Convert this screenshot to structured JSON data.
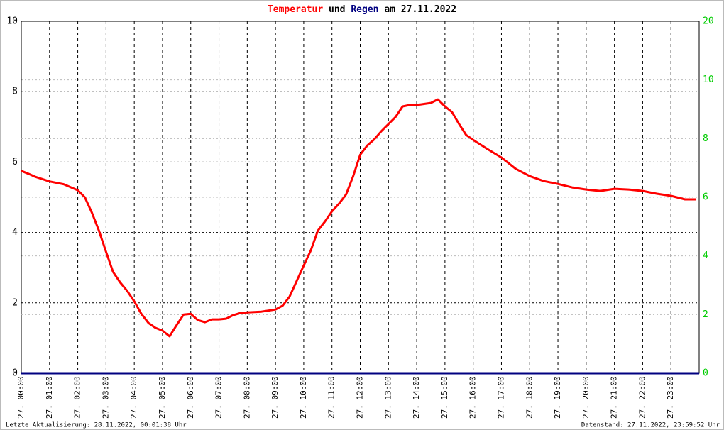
{
  "chart_data": {
    "type": "line",
    "title_parts": [
      {
        "text": "Temperatur",
        "color": "#ff0000"
      },
      {
        "text": "und",
        "color": "#000000"
      },
      {
        "text": "Regen",
        "color": "#000080"
      },
      {
        "text": "am 27.11.2022",
        "color": "#000000"
      }
    ],
    "footer_left": "Letzte Aktualisierung: 28.11.2022, 00:01:38 Uhr",
    "footer_right": "Datenstand: 27.11.2022, 23:59:52 Uhr",
    "xlim": [
      0,
      24
    ],
    "xticks": [
      {
        "value": 0,
        "label": "27. 00:00"
      },
      {
        "value": 1,
        "label": "27. 01:00"
      },
      {
        "value": 2,
        "label": "27. 02:00"
      },
      {
        "value": 3,
        "label": "27. 03:00"
      },
      {
        "value": 4,
        "label": "27. 04:00"
      },
      {
        "value": 5,
        "label": "27. 05:00"
      },
      {
        "value": 6,
        "label": "27. 06:00"
      },
      {
        "value": 7,
        "label": "27. 07:00"
      },
      {
        "value": 8,
        "label": "27. 08:00"
      },
      {
        "value": 9,
        "label": "27. 09:00"
      },
      {
        "value": 10,
        "label": "27. 10:00"
      },
      {
        "value": 11,
        "label": "27. 11:00"
      },
      {
        "value": 12,
        "label": "27. 12:00"
      },
      {
        "value": 13,
        "label": "27. 13:00"
      },
      {
        "value": 14,
        "label": "27. 14:00"
      },
      {
        "value": 15,
        "label": "27. 15:00"
      },
      {
        "value": 16,
        "label": "27. 16:00"
      },
      {
        "value": 17,
        "label": "27. 17:00"
      },
      {
        "value": 18,
        "label": "27. 18:00"
      },
      {
        "value": 19,
        "label": "27. 19:00"
      },
      {
        "value": 20,
        "label": "27. 20:00"
      },
      {
        "value": 21,
        "label": "27. 21:00"
      },
      {
        "value": 22,
        "label": "27. 22:00"
      },
      {
        "value": 23,
        "label": "27. 23:00"
      }
    ],
    "ylim": [
      0,
      10
    ],
    "yticks": [
      0,
      2,
      4,
      6,
      8,
      10
    ],
    "ytick_color": "#000000",
    "y2lim": [
      0,
      12
    ],
    "y2ticks": [
      0,
      2,
      4,
      6,
      8,
      10
    ],
    "y2_top_label": "20",
    "y2tick_color": "#00cc00",
    "grid": true,
    "series": [
      {
        "name": "Temperatur",
        "color": "#ff0000",
        "x": [
          0,
          0.25,
          0.5,
          1,
          1.5,
          2,
          2.25,
          2.5,
          2.75,
          3,
          3.25,
          3.5,
          3.75,
          4,
          4.25,
          4.5,
          4.75,
          5,
          5.25,
          5.5,
          5.75,
          6,
          6.25,
          6.5,
          6.75,
          7,
          7.25,
          7.5,
          7.75,
          8,
          8.5,
          9,
          9.25,
          9.5,
          9.75,
          10,
          10.25,
          10.5,
          10.75,
          11,
          11.25,
          11.5,
          11.75,
          12,
          12.25,
          12.5,
          12.75,
          13,
          13.25,
          13.5,
          13.75,
          14,
          14.5,
          14.75,
          15,
          15.25,
          15.5,
          15.75,
          16,
          16.5,
          17,
          17.5,
          18,
          18.5,
          19,
          19.5,
          20,
          20.5,
          21,
          21.5,
          22,
          22.5,
          23,
          23.5,
          23.9
        ],
        "values": [
          5.75,
          5.67,
          5.58,
          5.45,
          5.37,
          5.2,
          5.0,
          4.56,
          4.05,
          3.45,
          2.88,
          2.58,
          2.34,
          2.04,
          1.69,
          1.43,
          1.29,
          1.21,
          1.05,
          1.37,
          1.67,
          1.69,
          1.51,
          1.45,
          1.53,
          1.53,
          1.55,
          1.65,
          1.71,
          1.73,
          1.75,
          1.81,
          1.92,
          2.18,
          2.62,
          3.06,
          3.49,
          4.05,
          4.31,
          4.6,
          4.82,
          5.08,
          5.6,
          6.21,
          6.47,
          6.65,
          6.88,
          7.08,
          7.28,
          7.58,
          7.62,
          7.62,
          7.68,
          7.78,
          7.58,
          7.42,
          7.08,
          6.77,
          6.63,
          6.37,
          6.13,
          5.81,
          5.6,
          5.46,
          5.38,
          5.28,
          5.22,
          5.18,
          5.24,
          5.22,
          5.18,
          5.1,
          5.04,
          4.94,
          4.94
        ]
      },
      {
        "name": "Regen",
        "color": "#000080",
        "axis": "y2",
        "x": [
          0,
          24
        ],
        "values": [
          0,
          0
        ]
      }
    ]
  }
}
